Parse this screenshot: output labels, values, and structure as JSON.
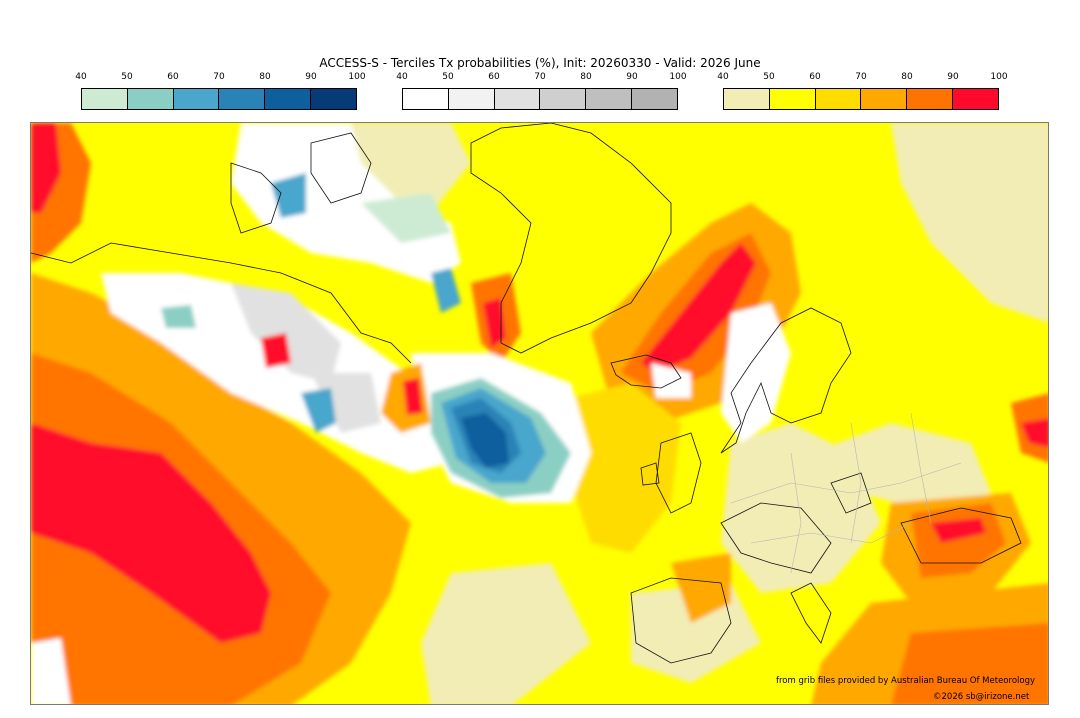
{
  "title": "ACCESS-S - Terciles Tx probabilities (%), Init: 20260330 - Valid: 2026 June",
  "legends": [
    {
      "name": "below-normal-legend",
      "ticks": [
        "40",
        "50",
        "60",
        "70",
        "80",
        "90",
        "100"
      ],
      "colors": [
        "#cdebd3",
        "#8bcfc4",
        "#4aa6cc",
        "#2a83b6",
        "#0e5f9e",
        "#073b78"
      ]
    },
    {
      "name": "near-normal-legend",
      "ticks": [
        "40",
        "50",
        "60",
        "70",
        "80",
        "90",
        "100"
      ],
      "colors": [
        "#ffffff",
        "#f2f2f2",
        "#e1e1e1",
        "#cfcfcf",
        "#bfbfbf",
        "#b2b2b2"
      ]
    },
    {
      "name": "above-normal-legend",
      "ticks": [
        "40",
        "50",
        "60",
        "70",
        "80",
        "90",
        "100"
      ],
      "colors": [
        "#f2edb5",
        "#ffff00",
        "#ffdc00",
        "#ffa800",
        "#ff7400",
        "#ff0a2c"
      ]
    }
  ],
  "credits": {
    "source": "from grib files provided by Australian Bureau Of Meteorology",
    "copyright": "©2026 sb@irizone.net"
  }
}
